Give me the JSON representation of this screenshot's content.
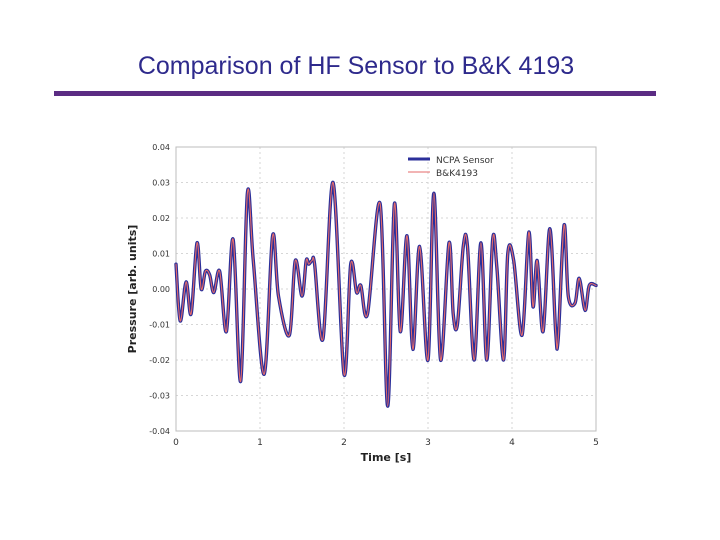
{
  "slide": {
    "title": "Comparison of HF Sensor to B&K 4193"
  },
  "chart_data": {
    "type": "line",
    "title": "",
    "xlabel": "Time [s]",
    "ylabel": "Pressure [arb. units]",
    "xlim": [
      0,
      5
    ],
    "ylim": [
      -0.04,
      0.04
    ],
    "x_ticks": [
      "0",
      "1",
      "2",
      "3",
      "4",
      "5"
    ],
    "y_ticks": [
      "0.04",
      "0.03",
      "0.02",
      "0.01",
      "0.00",
      "-0.01",
      "-0.02",
      "-0.03",
      "-0.04"
    ],
    "grid": true,
    "legend_position": "top-right",
    "colors": {
      "ncpa": "#2b2f9a",
      "bk": "#e46a6a"
    },
    "series": [
      {
        "name": "NCPA Sensor",
        "x": [
          0,
          0.05,
          0.12,
          0.18,
          0.25,
          0.3,
          0.35,
          0.4,
          0.45,
          0.52,
          0.6,
          0.68,
          0.77,
          0.85,
          0.92,
          1.05,
          1.15,
          1.22,
          1.35,
          1.42,
          1.5,
          1.55,
          1.58,
          1.62,
          1.65,
          1.75,
          1.87,
          2.0,
          2.08,
          2.15,
          2.2,
          2.28,
          2.43,
          2.52,
          2.6,
          2.67,
          2.75,
          2.82,
          2.9,
          3.0,
          3.07,
          3.15,
          3.25,
          3.3,
          3.35,
          3.42,
          3.47,
          3.55,
          3.63,
          3.7,
          3.77,
          3.82,
          3.9,
          3.95,
          4.02,
          4.12,
          4.2,
          4.25,
          4.3,
          4.37,
          4.45,
          4.52,
          4.55,
          4.62,
          4.67,
          4.75,
          4.8,
          4.87,
          4.92,
          5.0
        ],
        "y": [
          0.007,
          -0.009,
          0.002,
          -0.007,
          0.013,
          0.0,
          0.005,
          0.004,
          -0.001,
          0.005,
          -0.012,
          0.014,
          -0.026,
          0.027,
          0.008,
          -0.024,
          0.015,
          -0.002,
          -0.013,
          0.008,
          -0.002,
          0.008,
          0.007,
          0.008,
          0.007,
          -0.014,
          0.03,
          -0.024,
          0.007,
          -0.001,
          0.001,
          -0.007,
          0.024,
          -0.033,
          0.024,
          -0.012,
          0.015,
          -0.017,
          0.012,
          -0.02,
          0.027,
          -0.02,
          0.013,
          -0.007,
          -0.01,
          0.012,
          0.012,
          -0.02,
          0.013,
          -0.02,
          0.014,
          0.006,
          -0.02,
          0.01,
          0.008,
          -0.013,
          0.016,
          -0.005,
          0.008,
          -0.012,
          0.017,
          -0.012,
          -0.014,
          0.018,
          -0.002,
          -0.004,
          0.003,
          -0.006,
          0.001,
          0.001
        ]
      },
      {
        "name": "B&K4193",
        "x": [
          0,
          0.05,
          0.12,
          0.18,
          0.25,
          0.3,
          0.35,
          0.4,
          0.45,
          0.52,
          0.6,
          0.68,
          0.77,
          0.85,
          0.92,
          1.05,
          1.15,
          1.22,
          1.35,
          1.42,
          1.5,
          1.55,
          1.58,
          1.62,
          1.65,
          1.75,
          1.87,
          2.0,
          2.08,
          2.15,
          2.2,
          2.28,
          2.43,
          2.52,
          2.6,
          2.67,
          2.75,
          2.82,
          2.9,
          3.0,
          3.07,
          3.15,
          3.25,
          3.3,
          3.35,
          3.42,
          3.47,
          3.55,
          3.63,
          3.7,
          3.77,
          3.82,
          3.9,
          3.95,
          4.02,
          4.12,
          4.2,
          4.25,
          4.3,
          4.37,
          4.45,
          4.52,
          4.55,
          4.62,
          4.67,
          4.75,
          4.8,
          4.87,
          4.92,
          5.0
        ],
        "y": [
          0.007,
          -0.009,
          0.002,
          -0.007,
          0.013,
          0.0,
          0.005,
          0.004,
          -0.001,
          0.005,
          -0.012,
          0.014,
          -0.026,
          0.027,
          0.008,
          -0.024,
          0.015,
          -0.002,
          -0.013,
          0.008,
          -0.002,
          0.008,
          0.007,
          0.008,
          0.007,
          -0.014,
          0.03,
          -0.024,
          0.007,
          -0.001,
          0.001,
          -0.007,
          0.024,
          -0.033,
          0.024,
          -0.012,
          0.015,
          -0.017,
          0.012,
          -0.02,
          0.027,
          -0.02,
          0.013,
          -0.007,
          -0.01,
          0.012,
          0.012,
          -0.02,
          0.013,
          -0.02,
          0.014,
          0.006,
          -0.02,
          0.01,
          0.008,
          -0.013,
          0.016,
          -0.005,
          0.008,
          -0.012,
          0.017,
          -0.012,
          -0.014,
          0.018,
          -0.002,
          -0.004,
          0.003,
          -0.006,
          0.001,
          0.001
        ]
      }
    ]
  }
}
